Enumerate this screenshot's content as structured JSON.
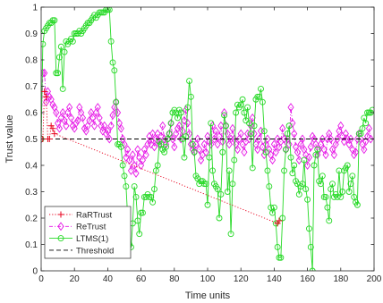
{
  "chart_data": {
    "type": "line",
    "title": "",
    "xlabel": "Time units",
    "ylabel": "Trust value",
    "xlim": [
      0,
      200
    ],
    "ylim": [
      0,
      1
    ],
    "xticks": [
      "0",
      "20",
      "40",
      "60",
      "80",
      "100",
      "120",
      "140",
      "160",
      "180",
      "200"
    ],
    "yticks": [
      "0",
      "0.1",
      "0.2",
      "0.3",
      "0.4",
      "0.5",
      "0.6",
      "0.7",
      "0.8",
      "0.9",
      "1"
    ],
    "grid": false,
    "legend_position": "bottom-left",
    "series": [
      {
        "name": "RaRTrust",
        "color": "#e8001c",
        "line_style": "dotted",
        "marker": "plus",
        "points": [
          [
            0,
            0.5
          ],
          [
            1,
            0.5
          ],
          [
            2,
            0.68
          ],
          [
            3,
            0.66
          ],
          [
            4,
            0.5
          ],
          [
            5,
            0.5
          ],
          [
            6,
            0.55
          ],
          [
            7,
            0.54
          ],
          [
            8,
            0.52
          ],
          [
            142,
            0.18
          ],
          [
            143,
            0.19
          ]
        ]
      },
      {
        "name": "ReTrust",
        "color": "#e617e6",
        "line_style": "dashdot",
        "marker": "diamond",
        "y": [
          0.5,
          0.75,
          0.75,
          0.64,
          0.68,
          0.66,
          0.65,
          0.63,
          0.62,
          0.6,
          0.56,
          0.54,
          0.58,
          0.6,
          0.57,
          0.55,
          0.6,
          0.62,
          0.58,
          0.55,
          0.54,
          0.56,
          0.57,
          0.62,
          0.6,
          0.58,
          0.54,
          0.53,
          0.55,
          0.57,
          0.6,
          0.58,
          0.55,
          0.6,
          0.62,
          0.58,
          0.55,
          0.53,
          0.55,
          0.52,
          0.53,
          0.5,
          0.55,
          0.59,
          0.62,
          0.64,
          0.6,
          0.56,
          0.54,
          0.5,
          0.48,
          0.43,
          0.46,
          0.42,
          0.38,
          0.44,
          0.4,
          0.37,
          0.46,
          0.43,
          0.4,
          0.42,
          0.46,
          0.44,
          0.48,
          0.51,
          0.48,
          0.52,
          0.47,
          0.5,
          0.52,
          0.48,
          0.51,
          0.55,
          0.5,
          0.48,
          0.5,
          0.52,
          0.56,
          0.5,
          0.47,
          0.52,
          0.54,
          0.55,
          0.5,
          0.53,
          0.57,
          0.61,
          0.56,
          0.52,
          0.48,
          0.46,
          0.45,
          0.48,
          0.5,
          0.46,
          0.42,
          0.44,
          0.48,
          0.45,
          0.51,
          0.49,
          0.48,
          0.55,
          0.5,
          0.53,
          0.48,
          0.51,
          0.55,
          0.49,
          0.6,
          0.55,
          0.52,
          0.48,
          0.5,
          0.54,
          0.5,
          0.48,
          0.46,
          0.5,
          0.52,
          0.48,
          0.45,
          0.49,
          0.52,
          0.5,
          0.55,
          0.58,
          0.52,
          0.48,
          0.46,
          0.5,
          0.53,
          0.47,
          0.44,
          0.48,
          0.5,
          0.46,
          0.44,
          0.42,
          0.48,
          0.45,
          0.5,
          0.47,
          0.49,
          0.54,
          0.5,
          0.46,
          0.5,
          0.48,
          0.62,
          0.56,
          0.52,
          0.47,
          0.45,
          0.42,
          0.48,
          0.5,
          0.46,
          0.44,
          0.4,
          0.43,
          0.47,
          0.51,
          0.5,
          0.48,
          0.44,
          0.46,
          0.48,
          0.5,
          0.46,
          0.44,
          0.5,
          0.52,
          0.5,
          0.46,
          0.44,
          0.48,
          0.5,
          0.53,
          0.55,
          0.51,
          0.49,
          0.52,
          0.5,
          0.48,
          0.5,
          0.46,
          0.44,
          0.45,
          0.5,
          0.52,
          0.5,
          0.48,
          0.46,
          0.49,
          0.51,
          0.54,
          0.5
        ]
      },
      {
        "name": "LTMS(1)",
        "color": "#26d926",
        "line_style": "solid",
        "marker": "circle",
        "y": [
          0.5,
          0.86,
          0.91,
          0.92,
          0.93,
          0.94,
          0.94,
          0.95,
          0.95,
          0.75,
          0.75,
          0.81,
          0.85,
          0.69,
          0.83,
          0.87,
          0.86,
          0.87,
          0.88,
          0.87,
          0.9,
          0.9,
          0.9,
          0.91,
          0.9,
          0.91,
          0.92,
          0.93,
          0.94,
          0.94,
          0.95,
          0.96,
          0.97,
          0.96,
          0.97,
          0.98,
          0.98,
          0.98,
          0.98,
          0.99,
          0.99,
          0.99,
          0.87,
          0.79,
          0.76,
          0.64,
          0.48,
          0.48,
          0.47,
          0.4,
          0.36,
          0.32,
          0.2,
          0.1,
          0.09,
          0.18,
          0.32,
          0.28,
          0.19,
          0.14,
          0.22,
          0.22,
          0.28,
          0.28,
          0.29,
          0.28,
          0.28,
          0.26,
          0.31,
          0.38,
          0.4,
          0.49,
          0.48,
          0.46,
          0.45,
          0.47,
          0.5,
          0.52,
          0.56,
          0.6,
          0.61,
          0.6,
          0.58,
          0.61,
          0.6,
          0.5,
          0.43,
          0.51,
          0.62,
          0.72,
          0.66,
          0.48,
          0.45,
          0.36,
          0.35,
          0.33,
          0.34,
          0.34,
          0.33,
          0.33,
          0.25,
          0.43,
          0.56,
          0.38,
          0.33,
          0.32,
          0.31,
          0.2,
          0.29,
          0.45,
          0.59,
          0.55,
          0.3,
          0.38,
          0.14,
          0.33,
          0.42,
          0.6,
          0.63,
          0.62,
          0.63,
          0.65,
          0.6,
          0.57,
          0.62,
          0.56,
          0.52,
          0.39,
          0.55,
          0.65,
          0.66,
          0.66,
          0.69,
          0.64,
          0.53,
          0.45,
          0.38,
          0.32,
          0.24,
          0.22,
          0.24,
          0.18,
          0.09,
          0.05,
          0.05,
          0.2,
          0.38,
          0.46,
          0.52,
          0.55,
          0.43,
          0.37,
          0.4,
          0.34,
          0.33,
          0.29,
          0.32,
          0.33,
          0.42,
          0.31,
          0.27,
          0.16,
          0.09,
          0.0,
          0.4,
          0.44,
          0.46,
          0.34,
          0.33,
          0.36,
          0.28,
          0.28,
          0.24,
          0.19,
          0.31,
          0.33,
          0.28,
          0.29,
          0.28,
          0.38,
          0.28,
          0.3,
          0.38,
          0.39,
          0.4,
          0.3,
          0.33,
          0.36,
          0.28,
          0.26,
          0.25,
          0.52,
          0.52,
          0.54,
          0.58,
          0.56,
          0.6,
          0.6,
          0.6,
          0.61
        ]
      },
      {
        "name": "Threshold",
        "color": "#000000",
        "line_style": "dashed",
        "marker": "none",
        "points": [
          [
            0,
            0.5
          ],
          [
            200,
            0.5
          ]
        ]
      }
    ]
  }
}
